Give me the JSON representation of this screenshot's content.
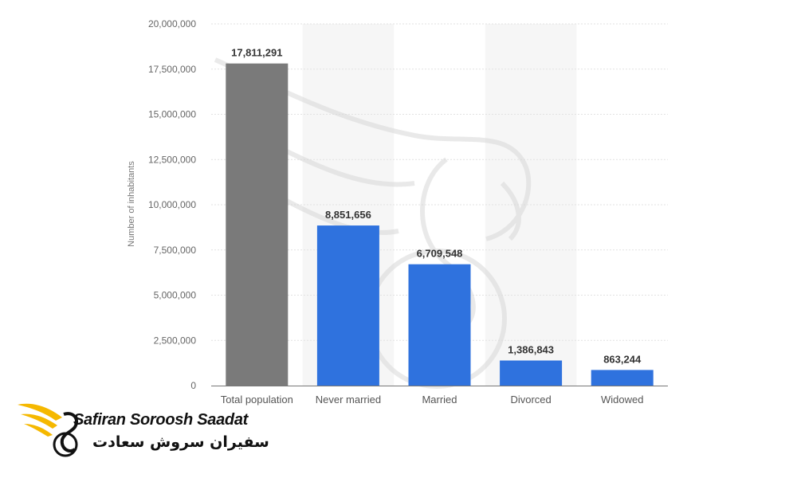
{
  "chart_data": {
    "type": "bar",
    "categories": [
      "Total population",
      "Never married",
      "Married",
      "Divorced",
      "Widowed"
    ],
    "values": [
      17811291,
      8851656,
      6709548,
      1386843,
      863244
    ],
    "value_labels": [
      "17,811,291",
      "8,851,656",
      "6,709,548",
      "1,386,843",
      "863,244"
    ],
    "bar_colors": [
      "#7a7a7a",
      "#2f72de",
      "#2f72de",
      "#2f72de",
      "#2f72de"
    ],
    "ylabel": "Number of inhabitants",
    "ylim": [
      0,
      20000000
    ],
    "yticks": [
      0,
      2500000,
      5000000,
      7500000,
      10000000,
      12500000,
      15000000,
      17500000,
      20000000
    ],
    "ytick_labels": [
      "0",
      "2,500,000",
      "5,000,000",
      "7,500,000",
      "10,000,000",
      "12,500,000",
      "15,000,000",
      "17,500,000",
      "20,000,000"
    ],
    "grid": true,
    "alternating_column_shading": true
  },
  "logo": {
    "text_en": "Safiran Soroosh Saadat",
    "text_fa": "سفیران سروش سعادت",
    "accent_color": "#f5b800"
  }
}
